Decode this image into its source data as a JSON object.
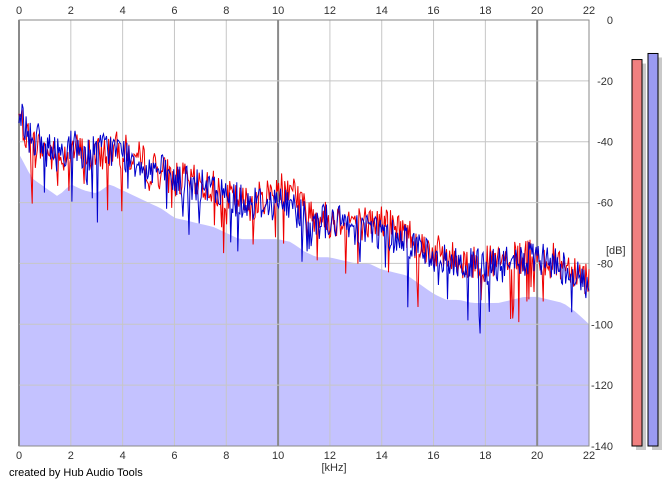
{
  "footer": {
    "credit": "created by Hub Audio Tools"
  },
  "colors": {
    "fill": "#c4c2ff",
    "left_channel": "#ee0000",
    "right_channel": "#0000cc",
    "grid": "#c6c6c6",
    "grid_major": "#8a8a8a",
    "left_meter": "#f08080",
    "right_meter": "#9a9af2",
    "meter_shadow": "#c9c9c9"
  },
  "chart_data": {
    "type": "line",
    "title": "",
    "xlabel": "[kHz]",
    "ylabel": "[dB]",
    "xlim": [
      0,
      22
    ],
    "ylim": [
      -140,
      0
    ],
    "x_ticks": [
      "0",
      "2",
      "4",
      "6",
      "8",
      "10",
      "12",
      "14",
      "16",
      "18",
      "20",
      "22"
    ],
    "y_ticks": [
      "0",
      "-20",
      "-40",
      "-60",
      "-80",
      "-100",
      "-120",
      "-140"
    ],
    "grid": true,
    "x": [
      0,
      0.5,
      1,
      1.5,
      2,
      2.5,
      3,
      3.5,
      4,
      4.5,
      5,
      5.5,
      6,
      6.5,
      7,
      7.5,
      8,
      8.5,
      9,
      9.5,
      10,
      10.5,
      11,
      11.5,
      12,
      12.5,
      13,
      13.5,
      14,
      14.5,
      15,
      15.5,
      16,
      16.5,
      17,
      17.5,
      18,
      18.5,
      19,
      19.5,
      20,
      20.5,
      21,
      21.5,
      22
    ],
    "series": [
      {
        "channel": "left",
        "values": [
          -32,
          -40,
          -43,
          -46,
          -42,
          -44,
          -45,
          -42,
          -43,
          -45,
          -48,
          -50,
          -52,
          -53,
          -54,
          -55,
          -58,
          -60,
          -60,
          -58,
          -55,
          -53,
          -62,
          -64,
          -66,
          -65,
          -66,
          -67,
          -66,
          -68,
          -70,
          -74,
          -76,
          -78,
          -79,
          -80,
          -80,
          -80,
          -79,
          -78,
          -78,
          -79,
          -80,
          -82,
          -85
        ]
      },
      {
        "channel": "right",
        "values": [
          -30,
          -38,
          -42,
          -44,
          -41,
          -44,
          -43,
          -42,
          -44,
          -46,
          -48,
          -50,
          -53,
          -54,
          -55,
          -56,
          -58,
          -59,
          -60,
          -60,
          -60,
          -61,
          -64,
          -66,
          -66,
          -67,
          -68,
          -68,
          -70,
          -71,
          -72,
          -75,
          -78,
          -80,
          -80,
          -81,
          -81,
          -81,
          -80,
          -79,
          -79,
          -80,
          -81,
          -84,
          -88
        ]
      }
    ],
    "level_meters": [
      {
        "channel": "left",
        "value_db": -13
      },
      {
        "channel": "right",
        "value_db": -11
      }
    ]
  }
}
